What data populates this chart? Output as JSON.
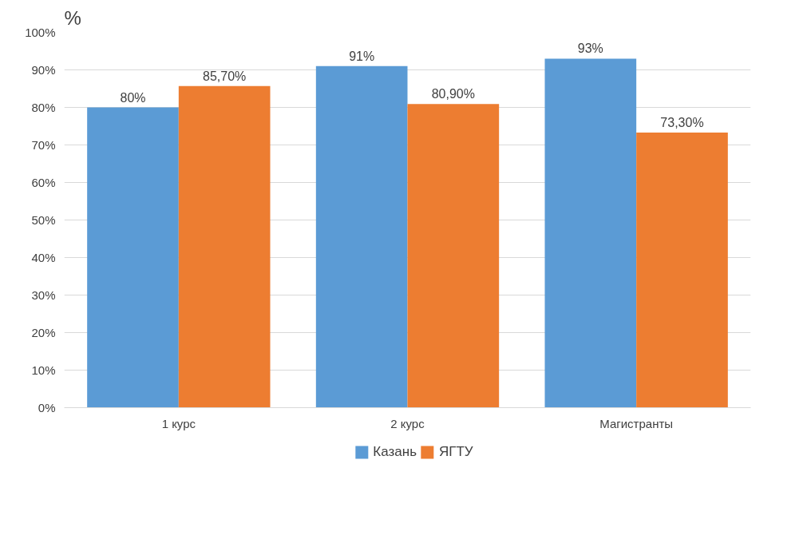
{
  "chart_data": {
    "type": "bar",
    "ylabel": "%",
    "categories": [
      "1 курс",
      "2 курс",
      "Магистранты"
    ],
    "series": [
      {
        "name": "Казань",
        "color": "#5b9bd5",
        "values": [
          80,
          91,
          93
        ],
        "value_labels": [
          "80%",
          "91%",
          "93%"
        ]
      },
      {
        "name": "ЯГТУ",
        "color": "#ed7d31",
        "values": [
          85.7,
          80.9,
          73.3
        ],
        "value_labels": [
          "85,70%",
          "80,90%",
          "73,30%"
        ]
      }
    ],
    "ylim": [
      0,
      100
    ],
    "yticks": [
      {
        "value": 0,
        "label": "0%"
      },
      {
        "value": 10,
        "label": "10%"
      },
      {
        "value": 20,
        "label": "20%"
      },
      {
        "value": 30,
        "label": "30%"
      },
      {
        "value": 40,
        "label": "40%"
      },
      {
        "value": 50,
        "label": "50%"
      },
      {
        "value": 60,
        "label": "60%"
      },
      {
        "value": 70,
        "label": "70%"
      },
      {
        "value": 80,
        "label": "80%"
      },
      {
        "value": 90,
        "label": "90%"
      },
      {
        "value": 100,
        "label": "100%"
      }
    ],
    "grid": "y",
    "legend": "bottom"
  }
}
